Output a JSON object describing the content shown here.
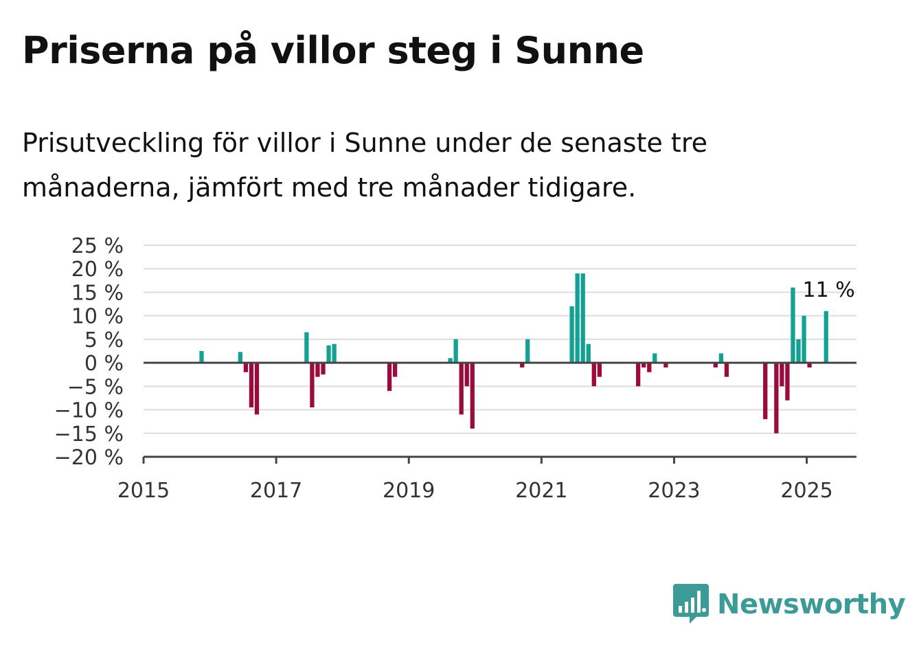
{
  "header": {
    "title": "Priserna på villor steg i Sunne",
    "subtitle": "Prisutveckling för villor i Sunne under de senaste tre månaderna, jämfört med tre månader tidigare."
  },
  "brand": {
    "name": "Newsworthy",
    "logo_icon": "bar-chart-speech-bubble-icon",
    "color": "#3c9b96"
  },
  "colors": {
    "positive": "#15a096",
    "negative": "#9b0a3c",
    "grid": "#dddddd",
    "axis": "#444444"
  },
  "chart_data": {
    "type": "bar",
    "title": "",
    "xlabel": "",
    "ylabel": "",
    "ylim": [
      -20,
      25
    ],
    "yticks": [
      25,
      20,
      15,
      10,
      5,
      0,
      -5,
      -10,
      -15,
      -20
    ],
    "ytick_labels": [
      "25 %",
      "20 %",
      "15 %",
      "10 %",
      "5 %",
      "0 %",
      "−5 %",
      "−10 %",
      "−15 %",
      "−20 %"
    ],
    "xlim": [
      "2015-01",
      "2025-10"
    ],
    "xticks": [
      "2015",
      "2017",
      "2019",
      "2021",
      "2023",
      "2025"
    ],
    "grid": true,
    "legend": "none",
    "annotation": {
      "date": "2025-04",
      "label": "11 %"
    },
    "x": [
      "2015-11",
      "2016-06",
      "2016-07",
      "2016-08",
      "2016-09",
      "2017-06",
      "2017-07",
      "2017-08",
      "2017-09",
      "2017-10",
      "2017-11",
      "2018-09",
      "2018-10",
      "2019-08",
      "2019-09",
      "2019-10",
      "2019-11",
      "2019-12",
      "2020-09",
      "2020-10",
      "2021-06",
      "2021-07",
      "2021-08",
      "2021-09",
      "2021-10",
      "2021-11",
      "2022-06",
      "2022-07",
      "2022-08",
      "2022-09",
      "2022-11",
      "2023-08",
      "2023-09",
      "2023-10",
      "2024-05",
      "2024-07",
      "2024-08",
      "2024-09",
      "2024-10",
      "2024-11",
      "2024-12",
      "2025-01",
      "2025-04"
    ],
    "values": [
      2.5,
      2.3,
      -2,
      -9.5,
      -11,
      6.5,
      -9.5,
      -3,
      -2.5,
      3.7,
      4,
      -6,
      -3,
      1,
      5,
      -11,
      -5,
      -14,
      -1,
      5,
      12,
      19,
      19,
      4,
      -5,
      -3,
      -5,
      -1,
      -2,
      2,
      -1,
      -1,
      2,
      -3,
      -12,
      -15,
      -5,
      -8,
      16,
      5,
      10,
      -1,
      11
    ]
  }
}
